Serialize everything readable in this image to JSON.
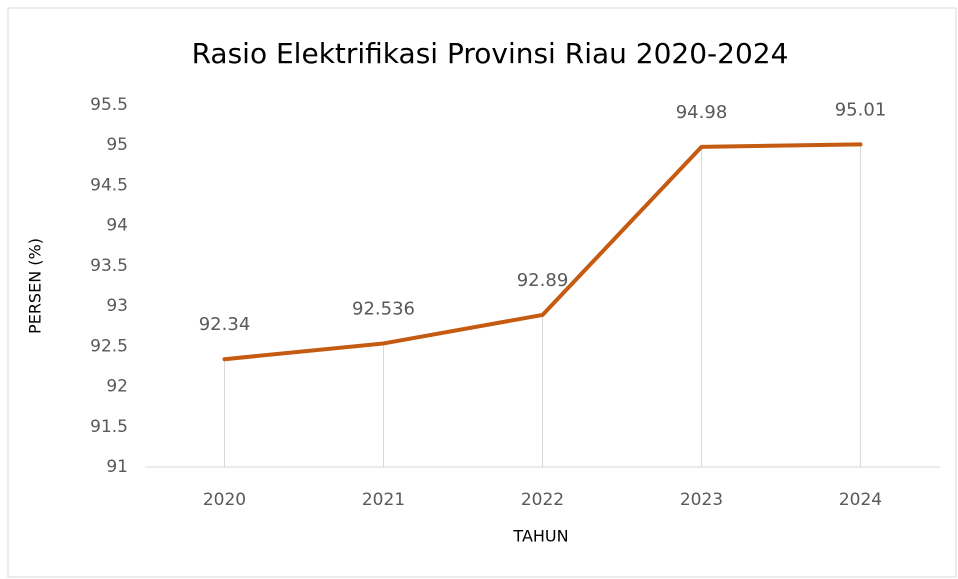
{
  "chart_data": {
    "type": "line",
    "title": "Rasio Elektrifikasi Provinsi Riau 2020-2024",
    "x_label": "TAHUN",
    "y_label": "PERSEN (%)",
    "categories": [
      "2020",
      "2021",
      "2022",
      "2023",
      "2024"
    ],
    "values": [
      92.34,
      92.536,
      92.89,
      94.98,
      95.01
    ],
    "color": "#c55a11",
    "ylim": [
      91,
      95.5
    ],
    "yticks": [
      91,
      91.5,
      92,
      92.5,
      93,
      93.5,
      94,
      94.5,
      95,
      95.5
    ],
    "drop_lines": true
  }
}
